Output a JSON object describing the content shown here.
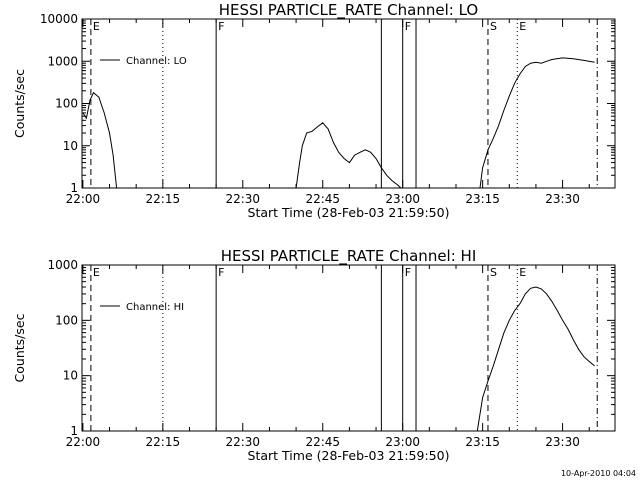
{
  "chart_data": [
    {
      "type": "line",
      "title": "HESSI PARTICLE_RATE Channel: LO",
      "xlabel": "Start Time (28-Feb-03 21:59:50)",
      "ylabel": "Counts/sec",
      "yscale": "log",
      "xlim": [
        "21:59:50",
        "23:39:50"
      ],
      "ylim": [
        1,
        10000
      ],
      "x_ticks": [
        "22:00",
        "22:15",
        "22:30",
        "22:45",
        "23:00",
        "23:15",
        "23:30"
      ],
      "y_ticks": [
        "1",
        "10",
        "100",
        "1000",
        "10000"
      ],
      "legend": {
        "placement": "top-left",
        "entries": [
          "Channel: LO"
        ]
      },
      "series": [
        {
          "name": "Channel: LO",
          "segments": [
            [
              [
                "22:00:00",
                60
              ],
              [
                "22:00:40",
                45
              ],
              [
                "22:01:20",
                120
              ],
              [
                "22:02:00",
                180
              ],
              [
                "22:03:00",
                140
              ],
              [
                "22:04:00",
                60
              ],
              [
                "22:05:00",
                20
              ],
              [
                "22:05:40",
                6
              ],
              [
                "22:06:20",
                1
              ]
            ],
            [
              [
                "22:40:00",
                1
              ],
              [
                "22:40:40",
                4
              ],
              [
                "22:41:10",
                10
              ],
              [
                "22:42:00",
                20
              ],
              [
                "22:43:00",
                22
              ],
              [
                "22:44:00",
                28
              ],
              [
                "22:45:00",
                35
              ],
              [
                "22:46:00",
                25
              ],
              [
                "22:47:00",
                12
              ],
              [
                "22:48:00",
                7
              ],
              [
                "22:49:00",
                5
              ],
              [
                "22:50:00",
                4
              ],
              [
                "22:51:00",
                6
              ],
              [
                "22:52:00",
                7
              ],
              [
                "22:53:00",
                8
              ],
              [
                "22:54:00",
                7
              ],
              [
                "22:55:00",
                5
              ],
              [
                "22:56:00",
                3
              ],
              [
                "22:57:00",
                2
              ],
              [
                "22:58:00",
                1.5
              ],
              [
                "22:59:00",
                1.2
              ],
              [
                "22:59:40",
                1
              ]
            ],
            [
              [
                "23:14:30",
                1
              ],
              [
                "23:15:00",
                3
              ],
              [
                "23:16:00",
                8
              ],
              [
                "23:17:00",
                15
              ],
              [
                "23:18:00",
                30
              ],
              [
                "23:19:00",
                70
              ],
              [
                "23:20:00",
                150
              ],
              [
                "23:21:00",
                300
              ],
              [
                "23:22:00",
                500
              ],
              [
                "23:23:00",
                750
              ],
              [
                "23:24:00",
                900
              ],
              [
                "23:25:00",
                950
              ],
              [
                "23:26:00",
                900
              ],
              [
                "23:27:00",
                1000
              ],
              [
                "23:28:00",
                1100
              ],
              [
                "23:30:00",
                1200
              ],
              [
                "23:32:00",
                1150
              ],
              [
                "23:34:00",
                1050
              ],
              [
                "23:36:00",
                950
              ]
            ]
          ]
        }
      ],
      "markers": [
        {
          "label": "E",
          "time": "22:01:30",
          "style": "dashed"
        },
        {
          "label": "",
          "time": "22:15:00",
          "style": "dotted"
        },
        {
          "label": "F",
          "time": "22:25:00",
          "style": "solid"
        },
        {
          "label": "",
          "time": "22:56:00",
          "style": "solid"
        },
        {
          "label": "F",
          "time": "23:00:00",
          "style": "solid"
        },
        {
          "label": "",
          "time": "23:02:30",
          "style": "solid"
        },
        {
          "label": "S",
          "time": "23:16:00",
          "style": "dashed"
        },
        {
          "label": "E",
          "time": "23:21:30",
          "style": "dotted"
        },
        {
          "label": "",
          "time": "23:36:30",
          "style": "dashdot"
        }
      ]
    },
    {
      "type": "line",
      "title": "HESSI PARTICLE_RATE Channel: HI",
      "xlabel": "Start Time (28-Feb-03 21:59:50)",
      "ylabel": "Counts/sec",
      "yscale": "log",
      "xlim": [
        "21:59:50",
        "23:39:50"
      ],
      "ylim": [
        1,
        1000
      ],
      "x_ticks": [
        "22:00",
        "22:15",
        "22:30",
        "22:45",
        "23:00",
        "23:15",
        "23:30"
      ],
      "y_ticks": [
        "1",
        "10",
        "100",
        "1000"
      ],
      "legend": {
        "placement": "top-left",
        "entries": [
          "Channel: HI"
        ]
      },
      "series": [
        {
          "name": "Channel: HI",
          "segments": [
            [
              [
                "23:14:00",
                1
              ],
              [
                "23:15:00",
                4
              ],
              [
                "23:16:00",
                8
              ],
              [
                "23:17:00",
                15
              ],
              [
                "23:18:00",
                30
              ],
              [
                "23:19:00",
                60
              ],
              [
                "23:20:00",
                100
              ],
              [
                "23:21:00",
                150
              ],
              [
                "23:22:00",
                200
              ],
              [
                "23:23:00",
                300
              ],
              [
                "23:24:00",
                380
              ],
              [
                "23:25:00",
                400
              ],
              [
                "23:26:00",
                370
              ],
              [
                "23:27:00",
                300
              ],
              [
                "23:28:00",
                220
              ],
              [
                "23:29:00",
                150
              ],
              [
                "23:30:00",
                100
              ],
              [
                "23:31:00",
                70
              ],
              [
                "23:32:00",
                45
              ],
              [
                "23:33:00",
                30
              ],
              [
                "23:34:00",
                22
              ],
              [
                "23:35:00",
                18
              ],
              [
                "23:36:00",
                15
              ]
            ]
          ]
        }
      ],
      "markers": [
        {
          "label": "E",
          "time": "22:01:30",
          "style": "dashed"
        },
        {
          "label": "",
          "time": "22:15:00",
          "style": "dotted"
        },
        {
          "label": "F",
          "time": "22:25:00",
          "style": "solid"
        },
        {
          "label": "",
          "time": "22:56:00",
          "style": "solid"
        },
        {
          "label": "F",
          "time": "23:00:00",
          "style": "solid"
        },
        {
          "label": "",
          "time": "23:02:30",
          "style": "solid"
        },
        {
          "label": "S",
          "time": "23:16:00",
          "style": "dashed"
        },
        {
          "label": "E",
          "time": "23:21:30",
          "style": "dotted"
        },
        {
          "label": "",
          "time": "23:36:30",
          "style": "dashdot"
        }
      ]
    }
  ],
  "footer": {
    "timestamp": "10-Apr-2010 04:04"
  }
}
